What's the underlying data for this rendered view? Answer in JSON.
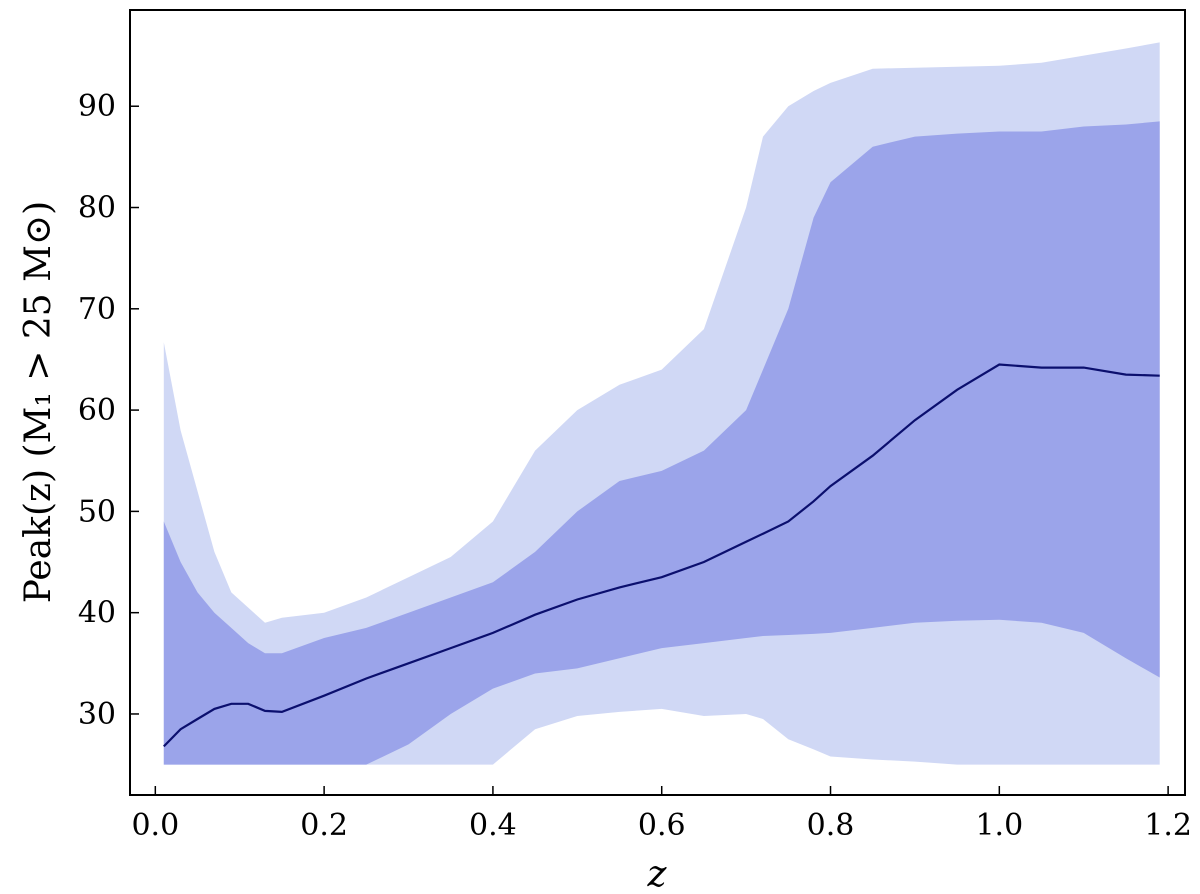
{
  "chart_data": {
    "type": "area",
    "xlabel": "z",
    "ylabel": "Peak(z) (M₁ > 25 M⊙)",
    "xlim": [
      -0.03,
      1.22
    ],
    "ylim": [
      22,
      99.5
    ],
    "xticks": [
      "0.0",
      "0.2",
      "0.4",
      "0.6",
      "0.8",
      "1.0",
      "1.2"
    ],
    "yticks": [
      "30",
      "40",
      "50",
      "60",
      "70",
      "80",
      "90"
    ],
    "grid": false,
    "colors": {
      "outer_band": "#d0d8f5",
      "inner_band": "#9ba4ea",
      "median_line": "#0b0f6e",
      "axes": "#000000"
    },
    "x": [
      0.01,
      0.03,
      0.05,
      0.07,
      0.09,
      0.11,
      0.13,
      0.15,
      0.2,
      0.25,
      0.3,
      0.35,
      0.4,
      0.45,
      0.5,
      0.55,
      0.6,
      0.65,
      0.7,
      0.72,
      0.75,
      0.78,
      0.8,
      0.85,
      0.9,
      0.95,
      1.0,
      1.05,
      1.1,
      1.15,
      1.19
    ],
    "series": [
      {
        "role": "outer_band_upper",
        "values": [
          66.7,
          58,
          52,
          46,
          42,
          40.5,
          39,
          39.5,
          40,
          41.5,
          43.5,
          45.5,
          49,
          56,
          60,
          62.5,
          64,
          68,
          80,
          87,
          90,
          91.5,
          92.3,
          93.7,
          93.8,
          93.9,
          94,
          94.3,
          95,
          95.7,
          96.3
        ]
      },
      {
        "role": "inner_band_upper",
        "values": [
          49,
          45,
          42,
          40,
          38.5,
          37,
          36,
          36,
          37.5,
          38.5,
          40,
          41.5,
          43,
          46,
          50,
          53,
          54,
          56,
          60,
          64,
          70,
          79,
          82.5,
          86,
          87,
          87.3,
          87.5,
          87.5,
          88,
          88.2,
          88.5
        ]
      },
      {
        "role": "median",
        "values": [
          26.8,
          28.5,
          29.5,
          30.5,
          31,
          31,
          30.3,
          30.2,
          31.8,
          33.5,
          35,
          36.5,
          38,
          39.8,
          41.3,
          42.5,
          43.5,
          45,
          47,
          47.8,
          49,
          51,
          52.5,
          55.5,
          59,
          62,
          64.5,
          64.2,
          64.2,
          63.5,
          63.4
        ]
      },
      {
        "role": "inner_band_lower",
        "values": [
          25,
          25,
          25,
          25,
          25,
          25,
          25,
          25,
          25,
          25,
          27,
          30,
          32.5,
          34,
          34.5,
          35.5,
          36.5,
          37,
          37.5,
          37.7,
          37.8,
          37.9,
          38,
          38.5,
          39,
          39.2,
          39.3,
          39,
          38,
          35.5,
          33.6
        ]
      },
      {
        "role": "outer_band_lower",
        "values": [
          25,
          25,
          25,
          25,
          25,
          25,
          25,
          25,
          25,
          25,
          25,
          25,
          25,
          28.5,
          29.8,
          30.2,
          30.5,
          29.8,
          30,
          29.5,
          27.5,
          26.5,
          25.8,
          25.5,
          25.3,
          25,
          25,
          25,
          25,
          25,
          25
        ]
      }
    ]
  }
}
